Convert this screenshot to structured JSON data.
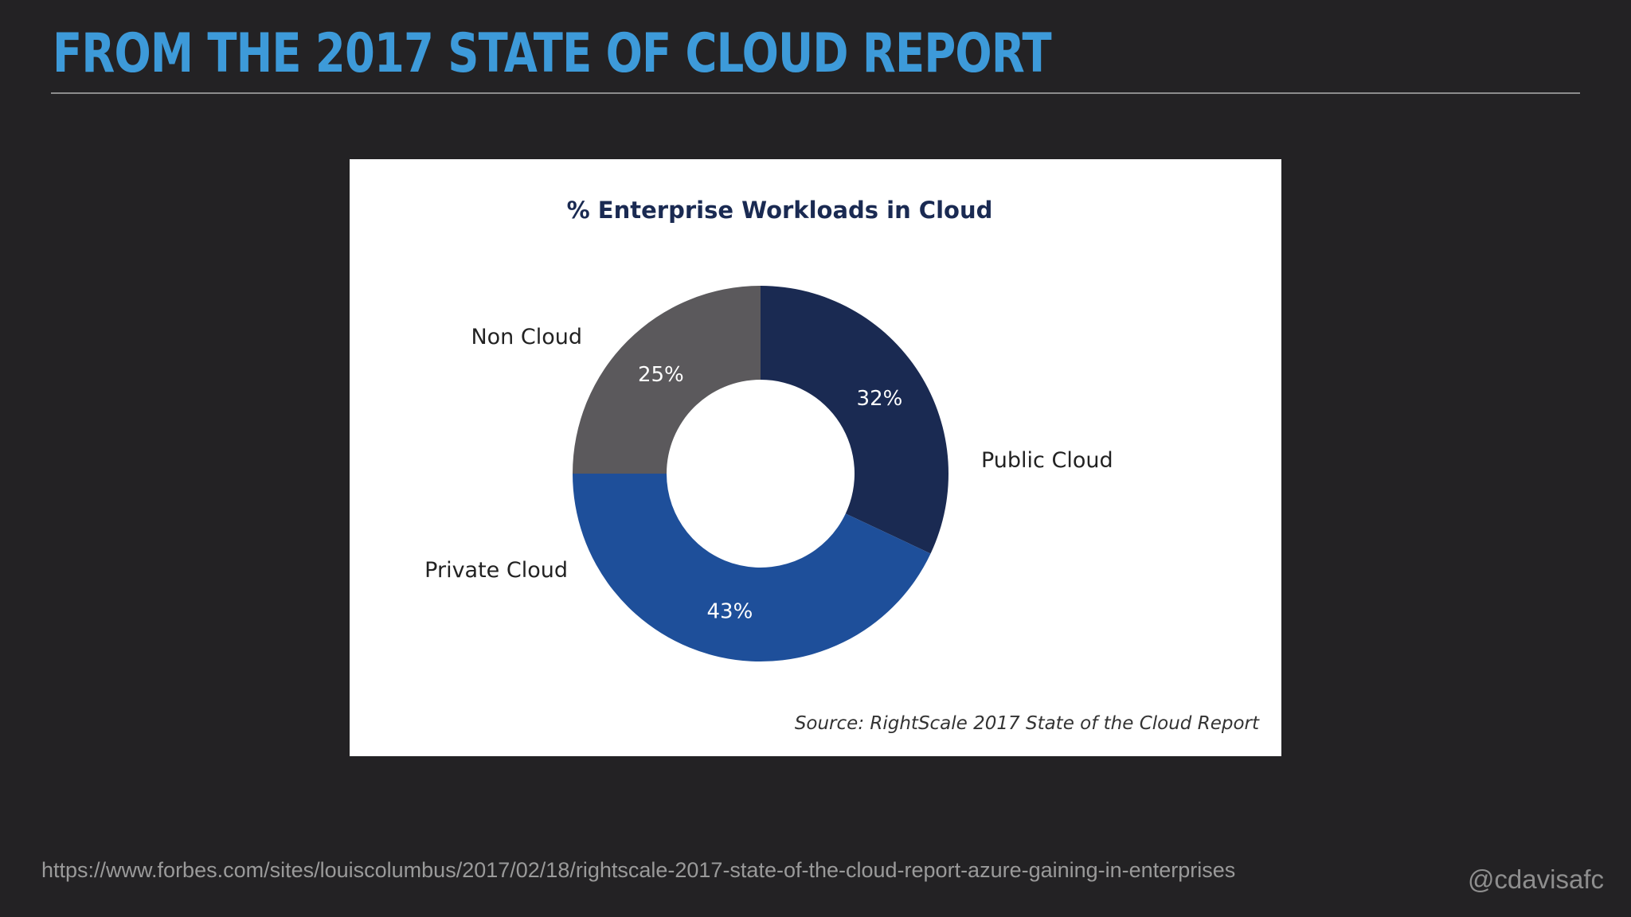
{
  "slide": {
    "title": "FROM THE 2017 STATE OF CLOUD REPORT",
    "source_url": "https://www.forbes.com/sites/louiscolumbus/2017/02/18/rightscale-2017-state-of-the-cloud-report-azure-gaining-in-enterprises",
    "handle": "@cdavisafc"
  },
  "chart_data": {
    "type": "pie",
    "title": "% Enterprise Workloads in Cloud",
    "source": "Source: RightScale 2017 State of the Cloud Report",
    "slices": [
      {
        "name": "Public Cloud",
        "value": 32,
        "label": "32%",
        "color": "#1a2a52"
      },
      {
        "name": "Private Cloud",
        "value": 43,
        "label": "43%",
        "color": "#1e4f9a"
      },
      {
        "name": "Non Cloud",
        "value": 25,
        "label": "25%",
        "color": "#5b595c"
      }
    ],
    "donut": true,
    "legend": "outside labels"
  }
}
